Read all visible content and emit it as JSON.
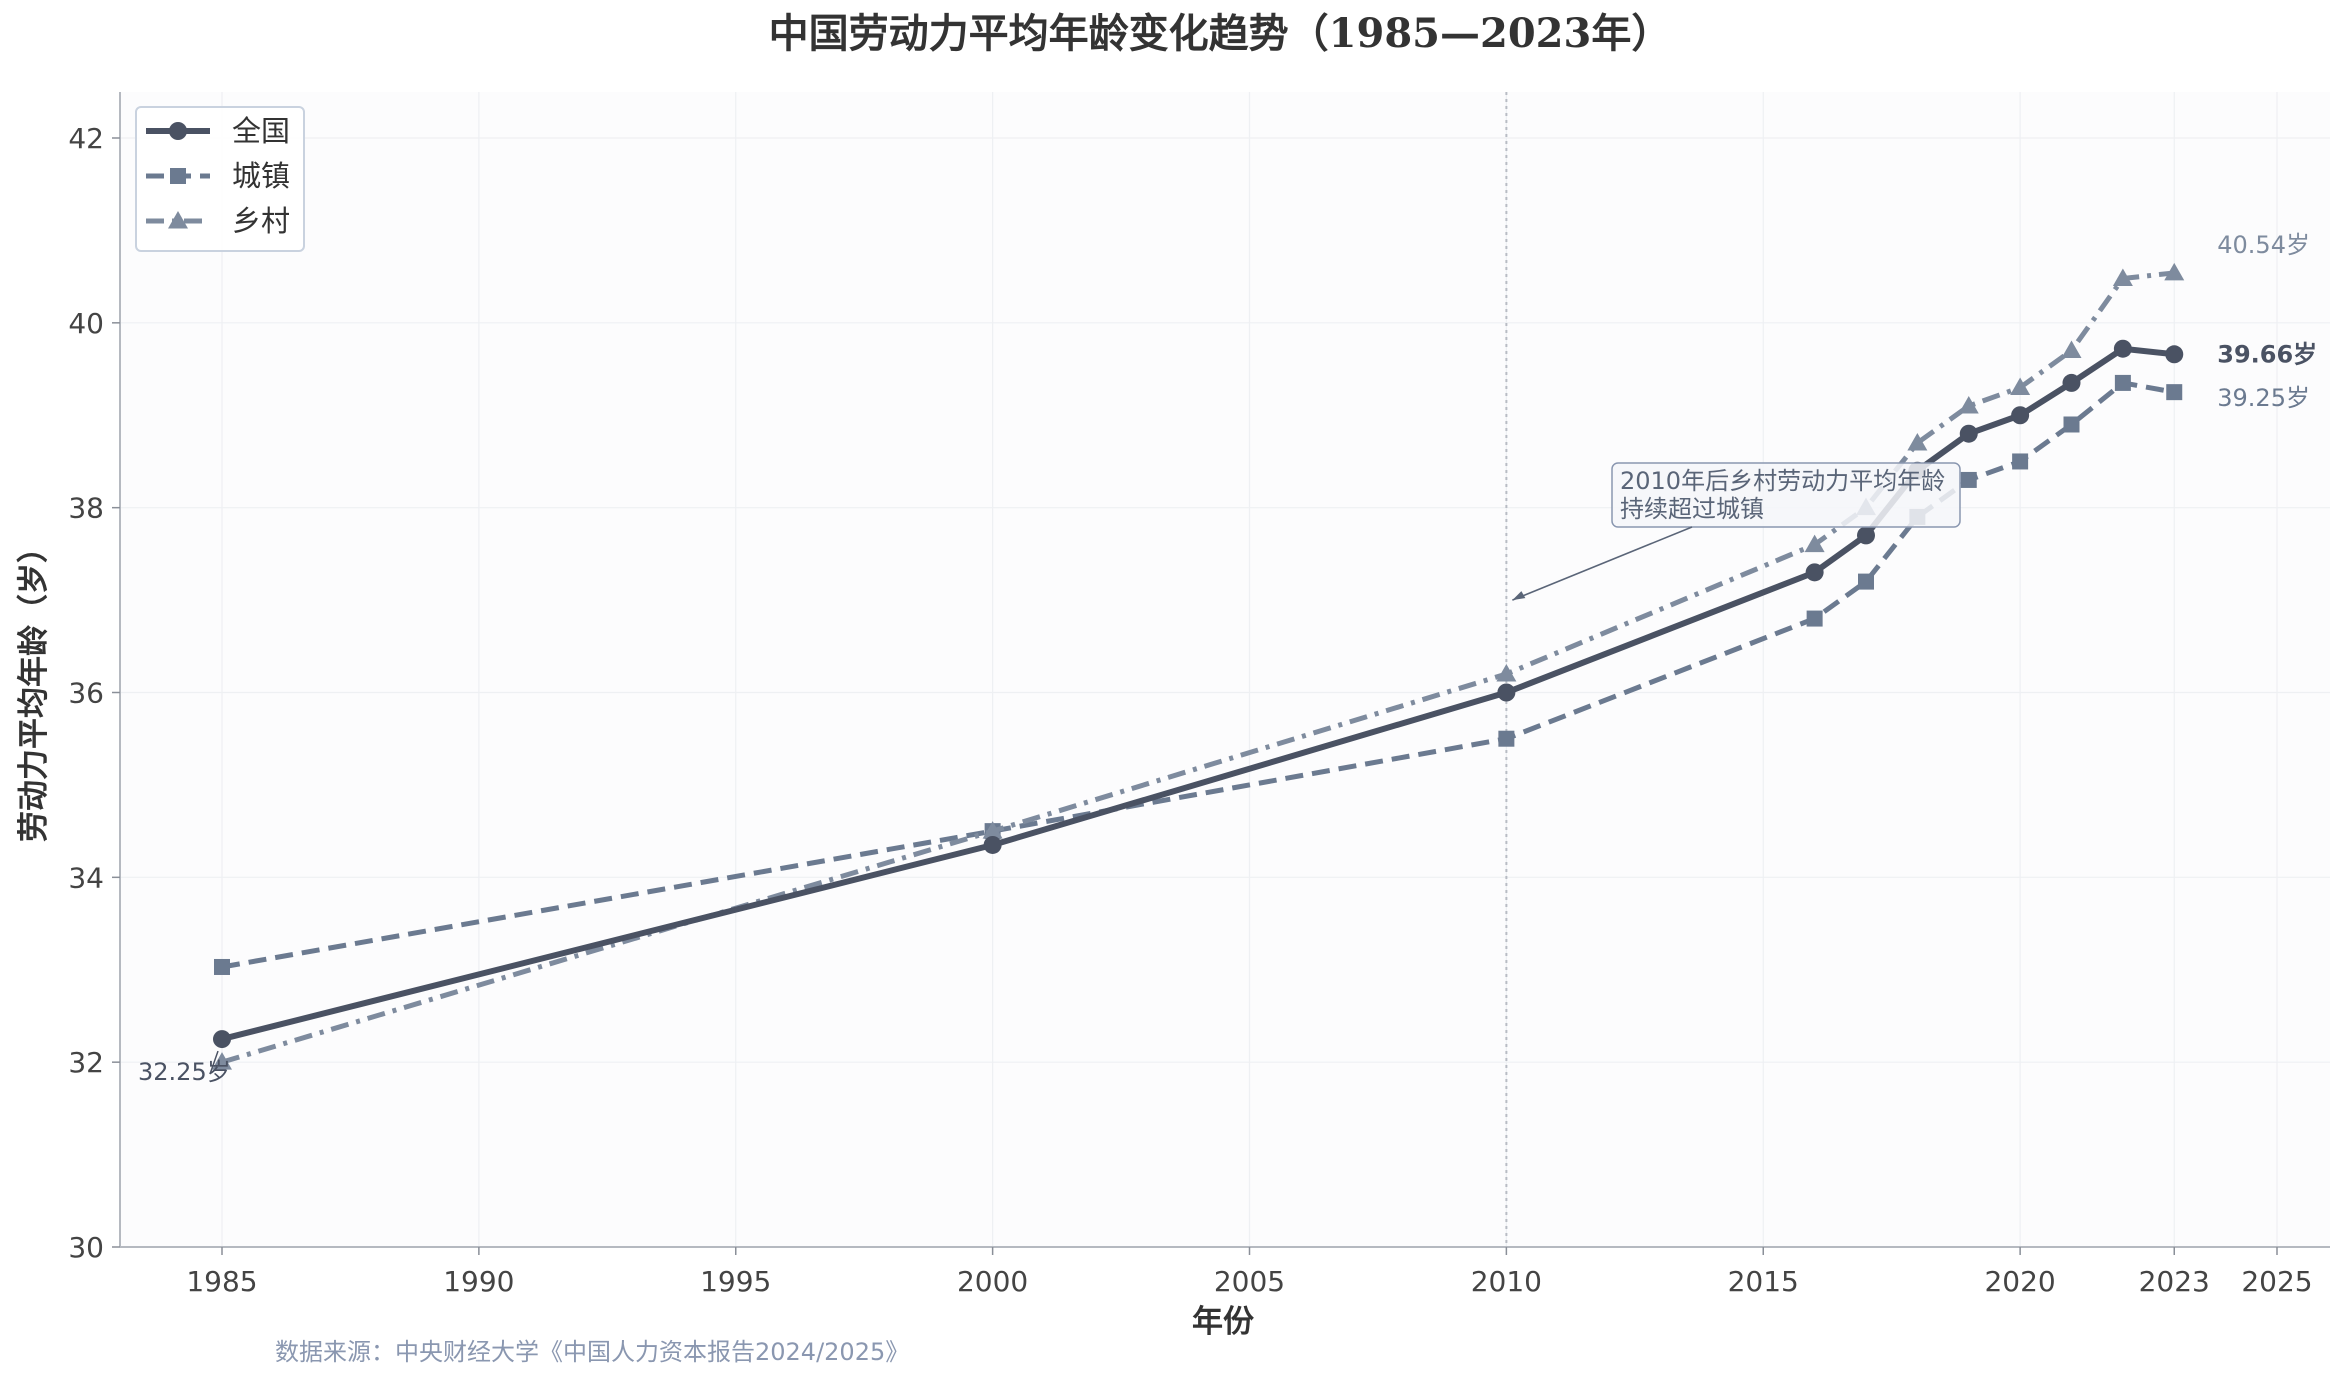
{
  "chart_data": {
    "type": "line",
    "title": "中国劳动力平均年龄变化趋势（1985—2023年）",
    "xlabel": "年份",
    "ylabel": "劳动力平均年龄（岁）",
    "xlim": [
      1983,
      2026
    ],
    "ylim": [
      30,
      42.5
    ],
    "x_ticks": [
      1985,
      1990,
      1995,
      2000,
      2005,
      2010,
      2015,
      2020,
      2023,
      2025
    ],
    "y_ticks": [
      30,
      32,
      34,
      36,
      38,
      40,
      42
    ],
    "grid": true,
    "legend_position": "upper-left",
    "series": [
      {
        "name": "全国",
        "color": "#4a5263",
        "line_style": "solid",
        "marker": "circle",
        "x": [
          1985,
          2000,
          2010,
          2016,
          2017,
          2018,
          2019,
          2020,
          2021,
          2022,
          2023
        ],
        "y": [
          32.25,
          34.35,
          36.0,
          37.3,
          37.7,
          38.4,
          38.8,
          39.0,
          39.35,
          39.72,
          39.66
        ]
      },
      {
        "name": "城镇",
        "color": "#6b7a90",
        "line_style": "dashed",
        "marker": "square",
        "x": [
          1985,
          2000,
          2010,
          2016,
          2017,
          2018,
          2019,
          2020,
          2021,
          2022,
          2023
        ],
        "y": [
          33.03,
          34.5,
          35.5,
          36.8,
          37.2,
          37.9,
          38.3,
          38.5,
          38.9,
          39.35,
          39.25
        ]
      },
      {
        "name": "乡村",
        "color": "#7e8b9e",
        "line_style": "dashdot",
        "marker": "triangle",
        "x": [
          1985,
          2000,
          2010,
          2016,
          2017,
          2018,
          2019,
          2020,
          2021,
          2022,
          2023
        ],
        "y": [
          32.0,
          34.5,
          36.2,
          37.6,
          38.0,
          38.7,
          39.1,
          39.3,
          39.7,
          40.48,
          40.54
        ]
      }
    ],
    "end_labels": [
      {
        "series": "乡村",
        "text": "40.54岁"
      },
      {
        "series": "全国",
        "text": "39.66岁"
      },
      {
        "series": "城镇",
        "text": "39.25岁"
      }
    ],
    "start_label": {
      "series": "全国",
      "text": "32.25岁"
    },
    "reference_line": {
      "x": 2010
    },
    "annotation": {
      "lines": [
        "2010年后乡村劳动力平均年龄",
        "持续超过城镇"
      ],
      "arrow_to": {
        "x": 2010,
        "y": 37.0
      }
    },
    "source": "数据来源：中央财经大学《中国人力资本报告2024/2025》"
  }
}
